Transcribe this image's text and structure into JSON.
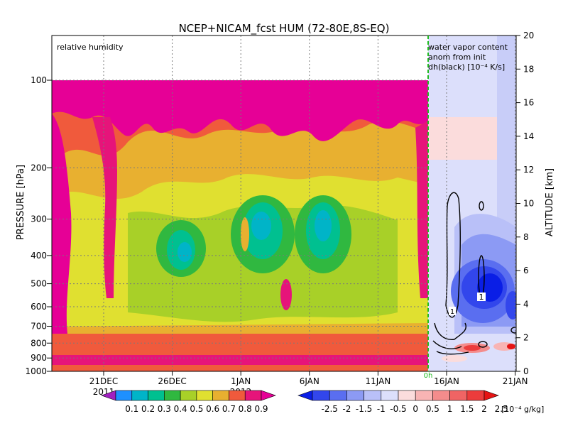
{
  "chart_data": {
    "type": "heatmap",
    "title": "NCEP+NICAM_fcst HUM (72-80E,8S-EQ)",
    "left_panel_label": "relative humidity",
    "right_panel_label": [
      "water vapor content",
      "anom from init",
      "dh(black) [10⁻⁴ K/s]"
    ],
    "ylabel_left": "PRESSURE [hPa]",
    "ylabel_right": "ALTITUDE [km]",
    "pressure_ticks": [
      "100",
      "200",
      "300",
      "400",
      "500",
      "600",
      "700",
      "800",
      "900",
      "1000"
    ],
    "altitude_ticks": [
      "0",
      "2",
      "4",
      "6",
      "8",
      "10",
      "12",
      "14",
      "16",
      "18",
      "20"
    ],
    "x_ticks": [
      "21DEC",
      "26DEC",
      "1JAN",
      "6JAN",
      "11JAN",
      "16JAN",
      "21JAN"
    ],
    "year_labels": [
      "2011",
      "2012"
    ],
    "forecast_marker": "0h",
    "contour_label": "1",
    "colorbar_rh": {
      "labels": [
        "0.1",
        "0.2",
        "0.3",
        "0.4",
        "0.5",
        "0.6",
        "0.7",
        "0.8",
        "0.9"
      ],
      "colors": [
        "#a020c0",
        "#1e90ff",
        "#00b4c8",
        "#00c090",
        "#30b840",
        "#a8d028",
        "#e0e030",
        "#e8b030",
        "#f05a3c",
        "#e6147a",
        "#e60096"
      ]
    },
    "colorbar_anom": {
      "labels": [
        "-2.5",
        "-2",
        "-1.5",
        "-1",
        "-0.5",
        "0",
        "0.5",
        "1",
        "1.5",
        "2",
        "2.5"
      ],
      "unit": "[10⁻⁴ g/kg]",
      "colors": [
        "#0a1ee6",
        "#3246ec",
        "#5a6ef0",
        "#8c9af4",
        "#b9c0f8",
        "#dcdffb",
        "#fbdcdc",
        "#f8b4b4",
        "#f48c8c",
        "#f06464",
        "#ec3c3c",
        "#e61414"
      ]
    }
  }
}
